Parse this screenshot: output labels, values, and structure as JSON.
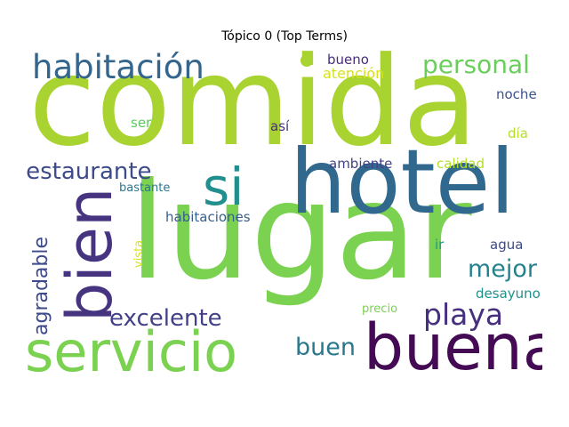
{
  "title": "Tópico 0 (Top Terms)",
  "words": [
    {
      "text": "comida",
      "color": "#a8d330"
    },
    {
      "text": "lugar",
      "color": "#7bd150"
    },
    {
      "text": "hotel",
      "color": "#31688e"
    },
    {
      "text": "servicio",
      "color": "#7bd150"
    },
    {
      "text": "buena",
      "color": "#440a54"
    },
    {
      "text": "bien",
      "color": "#463480"
    },
    {
      "text": "si",
      "color": "#218f8d"
    },
    {
      "text": "habitación",
      "color": "#33658d"
    },
    {
      "text": "personal",
      "color": "#6ace5c"
    },
    {
      "text": "restaurante",
      "color": "#3e4a89"
    },
    {
      "text": "playa",
      "color": "#46307e"
    },
    {
      "text": "excelente",
      "color": "#424187"
    },
    {
      "text": "agradable",
      "color": "#3e4a89"
    },
    {
      "text": "mejor",
      "color": "#26818e"
    },
    {
      "text": "buen",
      "color": "#2a778e"
    },
    {
      "text": "bueno",
      "color": "#472d7b"
    },
    {
      "text": "atención",
      "color": "#d8e219"
    },
    {
      "text": "noche",
      "color": "#3b528b"
    },
    {
      "text": "día",
      "color": "#b5de2b"
    },
    {
      "text": "ser",
      "color": "#5ec962"
    },
    {
      "text": "así",
      "color": "#46307e"
    },
    {
      "text": "ambiente",
      "color": "#424187"
    },
    {
      "text": "calidad",
      "color": "#b5de2b"
    },
    {
      "text": "bastante",
      "color": "#2a778e"
    },
    {
      "text": "habitaciones",
      "color": "#355f8d"
    },
    {
      "text": "vista",
      "color": "#d8e219"
    },
    {
      "text": "ir",
      "color": "#1f988b"
    },
    {
      "text": "agua",
      "color": "#3e4989"
    },
    {
      "text": "desayuno",
      "color": "#21918c"
    },
    {
      "text": "precio",
      "color": "#7ad151"
    }
  ],
  "marks": [
    {
      "color": "#a8d330"
    }
  ]
}
